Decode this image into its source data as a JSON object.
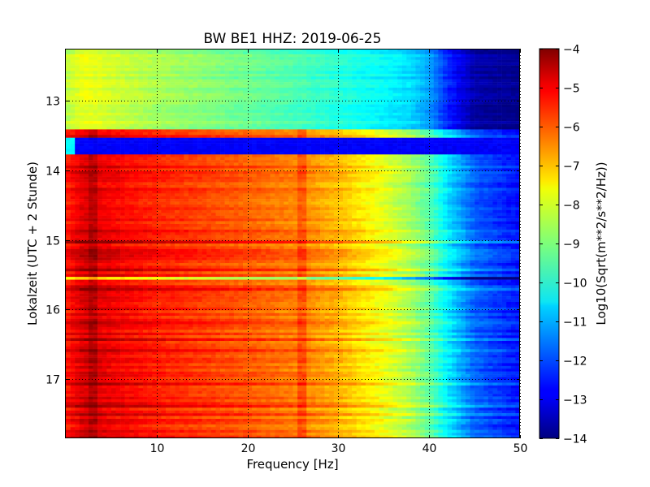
{
  "chart_data": {
    "type": "heatmap",
    "title": "BW BE1 HHZ: 2019-06-25",
    "xlabel": "Frequency [Hz]",
    "ylabel": "Lokalzeit (UTC + 2 Stunde)",
    "colorbar_label": "Log10(Sqrt(m**2/s**2/Hz))",
    "colormap": "jet",
    "grid": true,
    "grid_style": "dotted",
    "xlim": [
      0,
      50
    ],
    "ylim_hours": [
      12.25,
      17.85
    ],
    "y_axis_inverted": true,
    "clim": [
      -14,
      -4
    ],
    "x_ticks": [
      10,
      20,
      30,
      40,
      50
    ],
    "y_ticks": [
      13,
      14,
      15,
      16,
      17
    ],
    "colorbar_ticks": [
      -4,
      -5,
      -6,
      -7,
      -8,
      -9,
      -10,
      -11,
      -12,
      -13,
      -14
    ],
    "color_anchors": {
      "frequency_hz": [
        0.2,
        2,
        5,
        10,
        20,
        26,
        30,
        35,
        38,
        40,
        42,
        45,
        50
      ],
      "log_level_before_1325": [
        -8.4,
        -7.9,
        -8.2,
        -8.6,
        -9.2,
        -9.6,
        -9.9,
        -10.3,
        -10.6,
        -11.2,
        -12.4,
        -13.6,
        -13.9
      ],
      "log_level_after_1348": [
        -5.4,
        -4.8,
        -5.1,
        -5.5,
        -6.1,
        -6.5,
        -7.0,
        -7.9,
        -8.6,
        -9.3,
        -10.4,
        -11.8,
        -12.6
      ]
    },
    "gap_band": {
      "from_hour": 13.53,
      "to_hour": 13.78,
      "level": -12.8
    },
    "quiet_band_hour": 15.55
  }
}
